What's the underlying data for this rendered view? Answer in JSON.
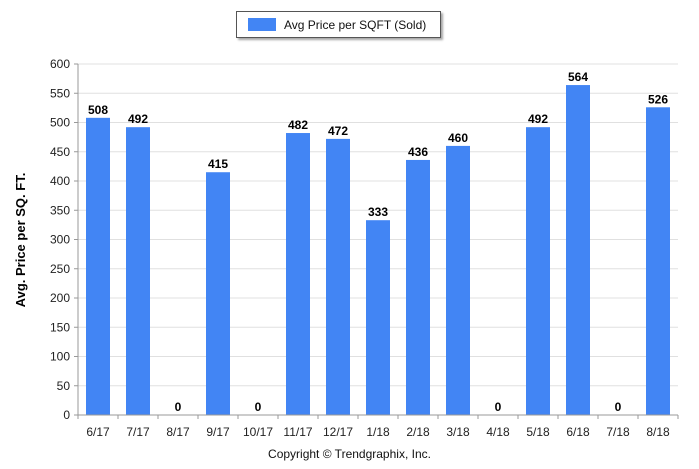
{
  "chart_data": {
    "type": "bar",
    "categories": [
      "6/17",
      "7/17",
      "8/17",
      "9/17",
      "10/17",
      "11/17",
      "12/17",
      "1/18",
      "2/18",
      "3/18",
      "4/18",
      "5/18",
      "6/18",
      "7/18",
      "8/18"
    ],
    "series": [
      {
        "name": "Avg Price per SQFT (Sold)",
        "values": [
          508,
          492,
          0,
          415,
          0,
          482,
          472,
          333,
          436,
          460,
          0,
          492,
          564,
          0,
          526
        ],
        "color": "#4285f4"
      }
    ],
    "xlabel": "",
    "ylabel": "Avg. Price per SQ. FT.",
    "ylim": [
      0,
      600
    ],
    "yticks": [
      0,
      50,
      100,
      150,
      200,
      250,
      300,
      350,
      400,
      450,
      500,
      550,
      600
    ],
    "grid": true,
    "legend_position": "top-center",
    "data_labels": true
  },
  "legend": {
    "label": "Avg Price per SQFT (Sold)",
    "color": "#4285f4"
  },
  "footer": {
    "copyright": "Copyright © Trendgraphix, Inc."
  }
}
